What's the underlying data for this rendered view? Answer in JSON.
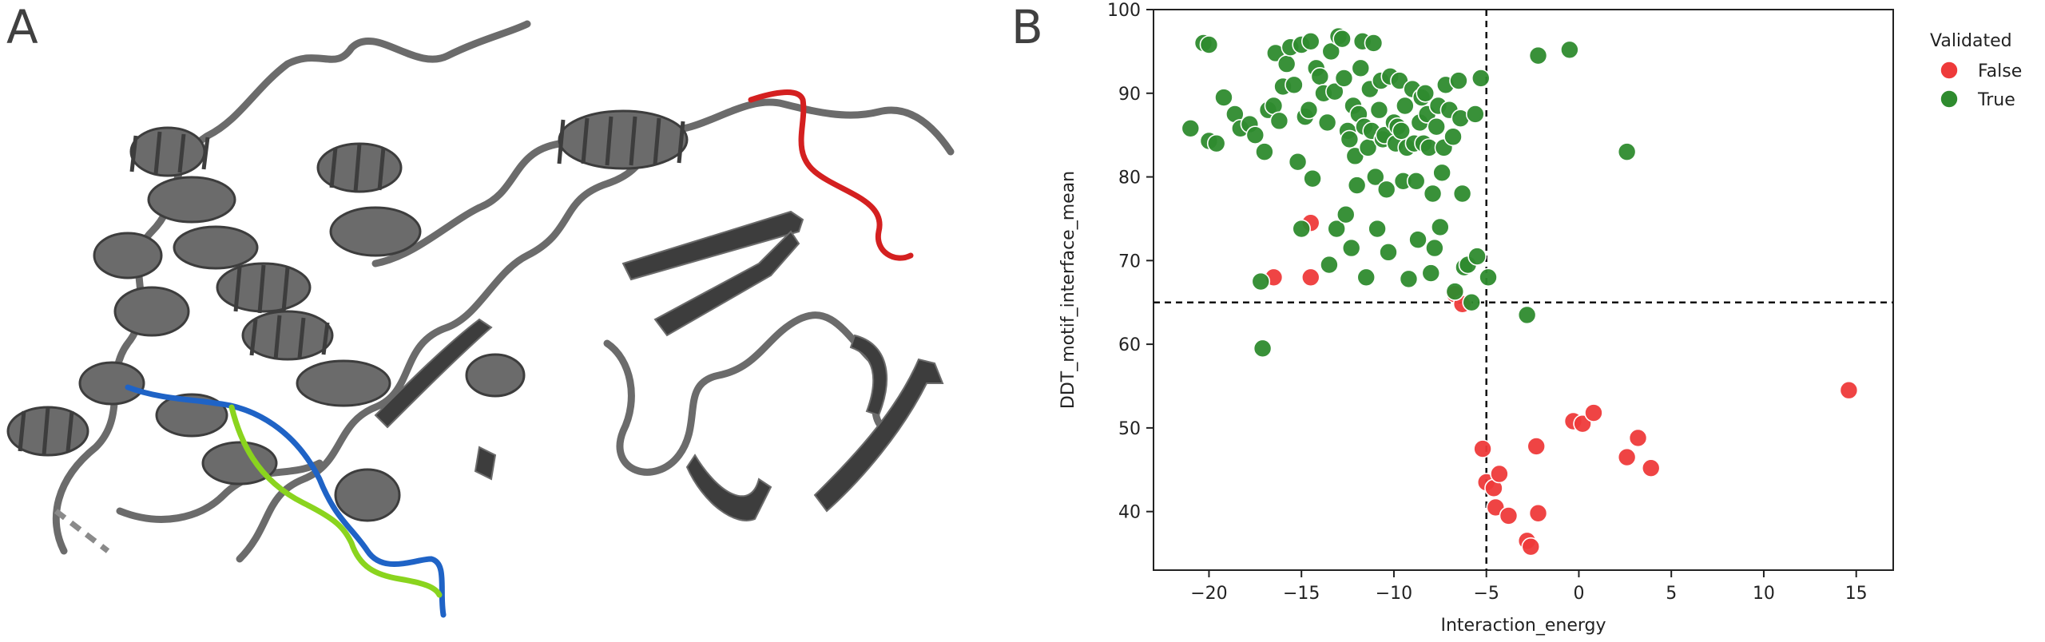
{
  "panels": {
    "a_label": "A",
    "b_label": "B"
  },
  "protein_image": {
    "colors": {
      "ribbon": "#6b6b6b",
      "ribbon_dark": "#3d3d3d",
      "red_segment": "#d42020",
      "blue_segment": "#1f63c6",
      "green_segment": "#8ad41e"
    }
  },
  "chart_data": {
    "type": "scatter",
    "xlabel": "Interaction_energy",
    "ylabel": "DDT_motif_interface_mean",
    "xlim": [
      -23,
      17
    ],
    "ylim": [
      33,
      100
    ],
    "xticks": [
      -20,
      -15,
      -10,
      -5,
      0,
      5,
      10,
      15
    ],
    "yticks": [
      40,
      50,
      60,
      70,
      80,
      90,
      100
    ],
    "ref_lines": {
      "x": -5,
      "y": 65
    },
    "grid": false,
    "legend": {
      "title": "Validated",
      "placement": "outside-right-top"
    },
    "series": [
      {
        "name": "False",
        "color": "#ee3a3a",
        "points": [
          [
            -16.5,
            68
          ],
          [
            -14.5,
            74.5
          ],
          [
            -14.5,
            68
          ],
          [
            -6.7,
            66
          ],
          [
            -6.3,
            64.8
          ],
          [
            -5.2,
            47.5
          ],
          [
            -5,
            43.5
          ],
          [
            -4.6,
            42.8
          ],
          [
            -4.3,
            44.5
          ],
          [
            -4.5,
            40.5
          ],
          [
            -3.8,
            39.5
          ],
          [
            -2.8,
            36.5
          ],
          [
            -2.6,
            35.8
          ],
          [
            -2.3,
            47.8
          ],
          [
            -2.2,
            39.8
          ],
          [
            -0.3,
            50.8
          ],
          [
            0.2,
            50.5
          ],
          [
            0.8,
            51.8
          ],
          [
            2.6,
            46.5
          ],
          [
            3.2,
            48.8
          ],
          [
            3.9,
            45.2
          ],
          [
            14.6,
            54.5
          ]
        ]
      },
      {
        "name": "True",
        "color": "#2e8b2e",
        "points": [
          [
            -21,
            85.8
          ],
          [
            -20.3,
            96
          ],
          [
            -20,
            95.8
          ],
          [
            -20,
            84.3
          ],
          [
            -19.6,
            84
          ],
          [
            -19.2,
            89.5
          ],
          [
            -18.6,
            87.5
          ],
          [
            -18.3,
            85.8
          ],
          [
            -17.8,
            86.3
          ],
          [
            -17.5,
            85
          ],
          [
            -17.2,
            67.5
          ],
          [
            -17.1,
            59.5
          ],
          [
            -17,
            83
          ],
          [
            -16.8,
            88
          ],
          [
            -16.5,
            88.5
          ],
          [
            -16.4,
            94.8
          ],
          [
            -16.2,
            86.7
          ],
          [
            -16,
            90.8
          ],
          [
            -15.8,
            93.5
          ],
          [
            -15.6,
            95.5
          ],
          [
            -15.4,
            91
          ],
          [
            -15.2,
            81.8
          ],
          [
            -15,
            95.8
          ],
          [
            -15,
            73.8
          ],
          [
            -14.8,
            87.2
          ],
          [
            -14.6,
            88
          ],
          [
            -14.5,
            96.2
          ],
          [
            -14.4,
            79.8
          ],
          [
            -14.2,
            93
          ],
          [
            -14,
            92
          ],
          [
            -13.8,
            90
          ],
          [
            -13.6,
            86.5
          ],
          [
            -13.5,
            69.5
          ],
          [
            -13.4,
            95
          ],
          [
            -13.2,
            90.2
          ],
          [
            -13.1,
            73.8
          ],
          [
            -13,
            96.8
          ],
          [
            -12.8,
            96.5
          ],
          [
            -12.7,
            91.8
          ],
          [
            -12.6,
            75.5
          ],
          [
            -12.5,
            85.5
          ],
          [
            -12.4,
            84.5
          ],
          [
            -12.3,
            71.5
          ],
          [
            -12.2,
            88.5
          ],
          [
            -12.1,
            82.5
          ],
          [
            -12,
            79
          ],
          [
            -11.9,
            87.5
          ],
          [
            -11.8,
            93
          ],
          [
            -11.7,
            96.2
          ],
          [
            -11.6,
            86
          ],
          [
            -11.5,
            68
          ],
          [
            -11.4,
            83.5
          ],
          [
            -11.3,
            90.5
          ],
          [
            -11.2,
            85.5
          ],
          [
            -11.1,
            96
          ],
          [
            -11,
            80
          ],
          [
            -10.9,
            73.8
          ],
          [
            -10.8,
            88
          ],
          [
            -10.7,
            91.5
          ],
          [
            -10.6,
            84.5
          ],
          [
            -10.5,
            85
          ],
          [
            -10.4,
            78.5
          ],
          [
            -10.3,
            71
          ],
          [
            -10.2,
            92
          ],
          [
            -10,
            86.5
          ],
          [
            -9.9,
            84
          ],
          [
            -9.8,
            86
          ],
          [
            -9.7,
            91.5
          ],
          [
            -9.6,
            85.5
          ],
          [
            -9.5,
            79.5
          ],
          [
            -9.4,
            88.5
          ],
          [
            -9.3,
            83.5
          ],
          [
            -9.2,
            67.8
          ],
          [
            -9,
            90.5
          ],
          [
            -8.9,
            84
          ],
          [
            -8.8,
            79.5
          ],
          [
            -8.7,
            72.5
          ],
          [
            -8.6,
            86.5
          ],
          [
            -8.5,
            89.5
          ],
          [
            -8.4,
            84
          ],
          [
            -8.3,
            90
          ],
          [
            -8.2,
            87.5
          ],
          [
            -8.1,
            83.5
          ],
          [
            -8,
            68.5
          ],
          [
            -7.9,
            78
          ],
          [
            -7.8,
            71.5
          ],
          [
            -7.7,
            86
          ],
          [
            -7.6,
            88.5
          ],
          [
            -7.5,
            74
          ],
          [
            -7.4,
            80.5
          ],
          [
            -7.3,
            83.5
          ],
          [
            -7.2,
            91
          ],
          [
            -7,
            88
          ],
          [
            -6.8,
            84.8
          ],
          [
            -6.7,
            66.3
          ],
          [
            -6.5,
            91.5
          ],
          [
            -6.4,
            87
          ],
          [
            -6.3,
            78
          ],
          [
            -6.2,
            69.2
          ],
          [
            -6,
            69.5
          ],
          [
            -5.8,
            65
          ],
          [
            -5.5,
            70.5
          ],
          [
            -5.3,
            91.8
          ],
          [
            -5.6,
            87.5
          ],
          [
            -4.9,
            68
          ],
          [
            -2.8,
            63.5
          ],
          [
            -2.2,
            94.5
          ],
          [
            -0.5,
            95.2
          ],
          [
            2.6,
            83
          ]
        ]
      }
    ]
  }
}
